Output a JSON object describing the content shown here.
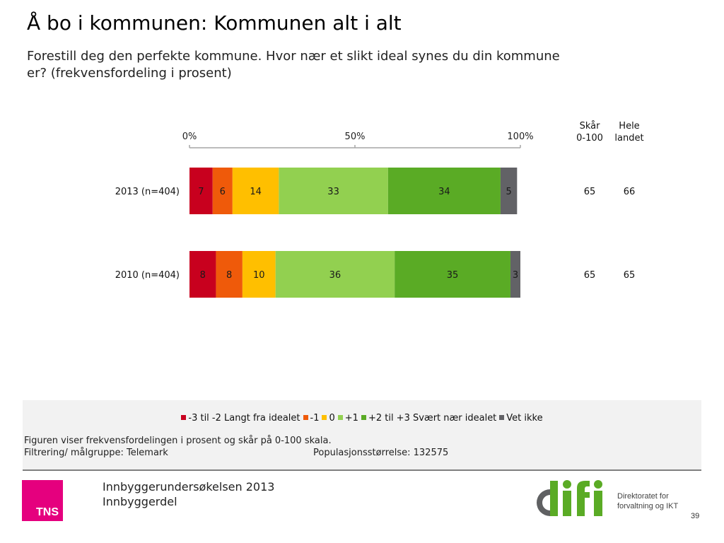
{
  "slide": {
    "title": "Å bo i kommunen: Kommunen alt i alt",
    "subtitle": "Forestill deg den perfekte kommune. Hvor nær et slikt ideal synes du din kommune er? (frekvensfordeling i prosent)"
  },
  "chart_data": {
    "type": "bar",
    "orientation": "horizontal-stacked-100",
    "title": "",
    "xlabel": "",
    "ylabel": "",
    "xlim": [
      0,
      100
    ],
    "x_ticks": [
      "0%",
      "50%",
      "100%"
    ],
    "x_tick_values": [
      0,
      50,
      100
    ],
    "categories": [
      "2013 (n=404)",
      "2010 (n=404)"
    ],
    "series": [
      {
        "name": "-3 til -2 Langt fra idealet",
        "color": "#c8001e",
        "values": [
          7,
          8
        ]
      },
      {
        "name": "-1",
        "color": "#ef5a0a",
        "values": [
          6,
          8
        ]
      },
      {
        "name": "0",
        "color": "#ffbf00",
        "values": [
          14,
          10
        ]
      },
      {
        "name": "+1",
        "color": "#92d050",
        "values": [
          33,
          36
        ]
      },
      {
        "name": "+2 til +3 Svært nær idealet",
        "color": "#5aab25",
        "values": [
          34,
          35
        ]
      },
      {
        "name": "Vet ikke",
        "color": "#626266",
        "values": [
          5,
          3
        ]
      }
    ],
    "side_columns": [
      {
        "header_lines": [
          "Skår",
          "0-100"
        ],
        "values": [
          65,
          65
        ]
      },
      {
        "header_lines": [
          "Hele",
          "landet"
        ],
        "values": [
          66,
          65
        ]
      }
    ],
    "legend_position": "bottom",
    "grid": false
  },
  "notes": {
    "line1": "Figuren viser frekvensfordelingen i prosent og skår på 0-100 skala.",
    "line2": "Filtrering/ målgruppe: Telemark",
    "population": "Populasjonsstørrelse: 132575"
  },
  "footer": {
    "tns_logo_text": "TNS",
    "survey_line1": "Innbyggerundersøkelsen 2013",
    "survey_line2": "Innbyggerdel",
    "difi_caption_line1": "Direktoratet for",
    "difi_caption_line2": "forvaltning og IKT",
    "page_number": "39",
    "colors": {
      "tns_pink": "#e5007e",
      "difi_green": "#5aab25",
      "difi_gray": "#5f6062"
    }
  }
}
